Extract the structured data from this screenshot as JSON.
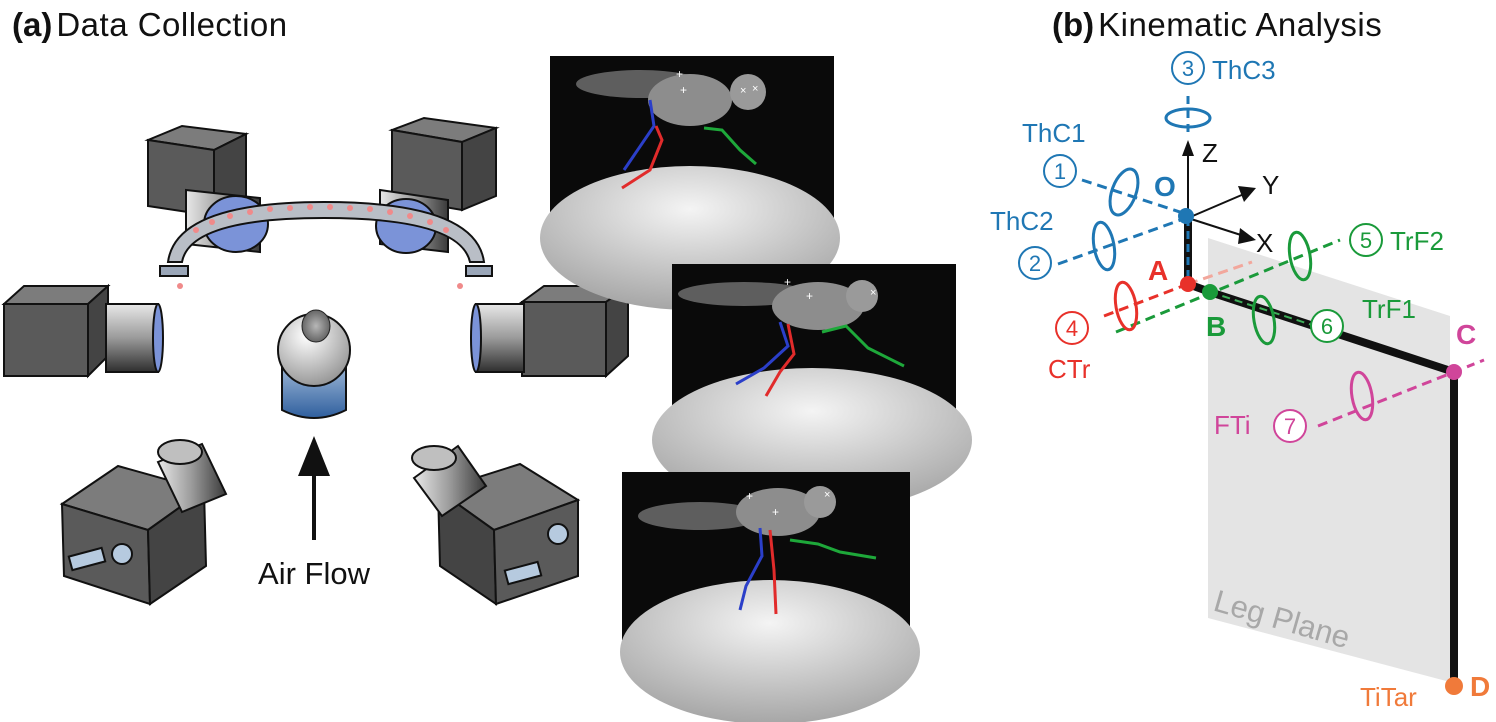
{
  "panel_a": {
    "letter": "(a)",
    "title": "Data Collection",
    "air_flow_label": "Air Flow"
  },
  "panel_b": {
    "letter": "(b)",
    "title": "Kinematic Analysis",
    "axes": {
      "z": "Z",
      "y": "Y",
      "x": "X"
    },
    "points": {
      "o": "O",
      "a": "A",
      "b": "B",
      "c": "C",
      "d": "D"
    },
    "joints": [
      {
        "number": "1",
        "name": "ThC1",
        "color": "#1f77b4"
      },
      {
        "number": "2",
        "name": "ThC2",
        "color": "#1f77b4"
      },
      {
        "number": "3",
        "name": "ThC3",
        "color": "#1f77b4"
      },
      {
        "number": "4",
        "name": "CTr",
        "color": "#e8312a"
      },
      {
        "number": "5",
        "name": "TrF2",
        "color": "#1a9a3a"
      },
      {
        "number": "6",
        "name": "TrF1",
        "color": "#1a9a3a"
      },
      {
        "number": "7",
        "name": "FTi",
        "color": "#d0459a"
      }
    ],
    "tip_label": "TiTar",
    "tip_color": "#f07a3a",
    "plane_label": "Leg Plane"
  },
  "colors": {
    "blue": "#1f77b4",
    "red": "#e8312a",
    "green": "#1a9a3a",
    "magenta": "#d0459a",
    "orange": "#f07a3a",
    "camera_body": "#5a5a5a",
    "lens_blue": "#7b93d8"
  }
}
